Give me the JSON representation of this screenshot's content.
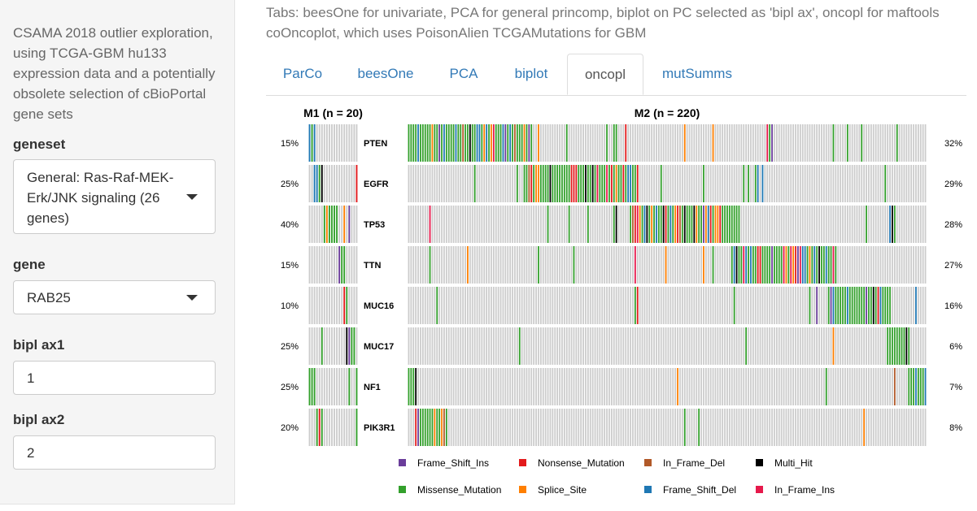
{
  "sidebar": {
    "intro": "CSAMA 2018 outlier exploration, using TCGA-GBM hu133 expression data and a potentially obsolete selection of cBioPortal gene sets",
    "geneset_label": "geneset",
    "geneset_value": "General: Ras-Raf-MEK-Erk/JNK signaling (26 genes)",
    "gene_label": "gene",
    "gene_value": "RAB25",
    "ax1_label": "bipl ax1",
    "ax1_value": "1",
    "ax2_label": "bipl ax2",
    "ax2_value": "2"
  },
  "main": {
    "note": "Tabs: beesOne for univariate, PCA for general princomp, biplot on PC selected as 'bipl ax', oncopl for maftools coOncoplot, which uses PoisonAlien TCGAMutations for GBM",
    "tabs": [
      {
        "label": "ParCo",
        "active": false
      },
      {
        "label": "beesOne",
        "active": false
      },
      {
        "label": "PCA",
        "active": false
      },
      {
        "label": "biplot",
        "active": false
      },
      {
        "label": "oncopl",
        "active": true
      },
      {
        "label": "mutSumms",
        "active": false
      }
    ]
  },
  "chart_data": {
    "type": "heatmap",
    "panels": [
      {
        "title": "M1 (n = 20)",
        "n": 20
      },
      {
        "title": "M2 (n = 220)",
        "n": 220
      }
    ],
    "genes": [
      {
        "name": "PTEN",
        "m1_pct": "15%",
        "m2_pct": "32%"
      },
      {
        "name": "EGFR",
        "m1_pct": "25%",
        "m2_pct": "29%"
      },
      {
        "name": "TP53",
        "m1_pct": "40%",
        "m2_pct": "28%"
      },
      {
        "name": "TTN",
        "m1_pct": "15%",
        "m2_pct": "27%"
      },
      {
        "name": "MUC16",
        "m1_pct": "10%",
        "m2_pct": "16%"
      },
      {
        "name": "MUC17",
        "m1_pct": "25%",
        "m2_pct": "6%"
      },
      {
        "name": "NF1",
        "m1_pct": "25%",
        "m2_pct": "7%"
      },
      {
        "name": "PIK3R1",
        "m1_pct": "20%",
        "m2_pct": "8%"
      }
    ],
    "legend": [
      {
        "label": "Frame_Shift_Ins",
        "color": "#6a3d9a"
      },
      {
        "label": "Nonsense_Mutation",
        "color": "#e31a1c"
      },
      {
        "label": "In_Frame_Del",
        "color": "#b15928"
      },
      {
        "label": "Multi_Hit",
        "color": "#000000"
      },
      {
        "label": "Missense_Mutation",
        "color": "#33a02c"
      },
      {
        "label": "Splice_Site",
        "color": "#ff7f00"
      },
      {
        "label": "Frame_Shift_Del",
        "color": "#1f78b4"
      },
      {
        "label": "In_Frame_Ins",
        "color": "#e6194b"
      }
    ],
    "empty_color": "#cccccc"
  }
}
